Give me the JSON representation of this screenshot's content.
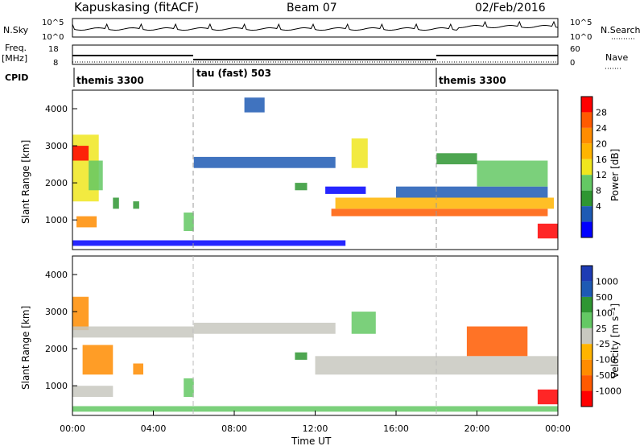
{
  "header": {
    "station": "Kapuskasing (fitACF)",
    "beam": "Beam 07",
    "date": "02/Feb/2016"
  },
  "top_panels": {
    "nsky": {
      "label": "N.Sky",
      "ticks": [
        "10^5",
        "10^0"
      ],
      "right_label": "N.Search",
      "right_ticks": [
        "10^5",
        "10^0"
      ]
    },
    "freq": {
      "label": "Freq.",
      "unit": "[MHz]",
      "ticks": [
        "18",
        "8"
      ],
      "right_label": "Nave",
      "right_ticks": [
        "60",
        "0"
      ]
    },
    "cpid": {
      "label": "CPID",
      "segments": [
        {
          "name": "themis 3300",
          "start": 0,
          "end": 6
        },
        {
          "name": "tau (fast) 503",
          "start": 6,
          "end": 18
        },
        {
          "name": "themis 3300",
          "start": 18,
          "end": 24
        }
      ]
    }
  },
  "axes": {
    "ylabel": "Slant Range [km]",
    "xlabel": "Time UT",
    "yticks": [
      "4000",
      "3000",
      "2000",
      "1000"
    ],
    "xticks": [
      "00:00",
      "04:00",
      "08:00",
      "12:00",
      "16:00",
      "20:00",
      "00:00"
    ]
  },
  "power_scale": {
    "label": "Power [dB]",
    "ticks": [
      "28",
      "24",
      "20",
      "16",
      "12",
      "8",
      "4"
    ],
    "colors": [
      "#ff0000",
      "#ff5a00",
      "#ff8c00",
      "#ffb400",
      "#f0e61e",
      "#64c864",
      "#2f9632",
      "#1e5ab4",
      "#0000ff"
    ]
  },
  "velocity_scale": {
    "label": "Velocity [m s⁻¹]",
    "ticks": [
      "1000",
      "500",
      "100",
      "25",
      "-25",
      "-100",
      "-500",
      "-1000"
    ],
    "colors": [
      "#1e3cb4",
      "#1e5ab4",
      "#2f9632",
      "#64c864",
      "#c8c8c0",
      "#ffb400",
      "#ff8c00",
      "#ff5a00",
      "#ff0000"
    ]
  },
  "chart_data": [
    {
      "type": "heatmap",
      "title": "Power",
      "xlabel": "Time UT",
      "ylabel": "Slant Range [km]",
      "xlim": [
        0,
        24
      ],
      "ylim": [
        200,
        4500
      ],
      "colorbar": "Power [dB]",
      "regions": [
        {
          "t": [
            0.0,
            1.3
          ],
          "r": [
            1500,
            3300
          ],
          "level": 4
        },
        {
          "t": [
            0.0,
            0.8
          ],
          "r": [
            2600,
            3000
          ],
          "level": 0
        },
        {
          "t": [
            0.2,
            1.2
          ],
          "r": [
            800,
            1100
          ],
          "level": 2
        },
        {
          "t": [
            0.8,
            1.5
          ],
          "r": [
            1800,
            2600
          ],
          "level": 5
        },
        {
          "t": [
            2.0,
            2.3
          ],
          "r": [
            1300,
            1600
          ],
          "level": 6
        },
        {
          "t": [
            3.0,
            3.3
          ],
          "r": [
            1300,
            1500
          ],
          "level": 6
        },
        {
          "t": [
            5.5,
            6.0
          ],
          "r": [
            700,
            1200
          ],
          "level": 5
        },
        {
          "t": [
            6.0,
            13.0
          ],
          "r": [
            2400,
            2700
          ],
          "level": 7
        },
        {
          "t": [
            8.5,
            9.5
          ],
          "r": [
            3900,
            4300
          ],
          "level": 7
        },
        {
          "t": [
            11.0,
            11.6
          ],
          "r": [
            1800,
            2000
          ],
          "level": 6
        },
        {
          "t": [
            12.5,
            14.5
          ],
          "r": [
            1700,
            1900
          ],
          "level": 8
        },
        {
          "t": [
            12.8,
            23.5
          ],
          "r": [
            1100,
            1300
          ],
          "level": 1
        },
        {
          "t": [
            13.0,
            23.8
          ],
          "r": [
            1300,
            1600
          ],
          "level": 3
        },
        {
          "t": [
            13.8,
            14.6
          ],
          "r": [
            2400,
            3200
          ],
          "level": 4
        },
        {
          "t": [
            16.0,
            23.5
          ],
          "r": [
            1600,
            1900
          ],
          "level": 7
        },
        {
          "t": [
            20.0,
            23.5
          ],
          "r": [
            1900,
            2600
          ],
          "level": 5
        },
        {
          "t": [
            23.0,
            24.0
          ],
          "r": [
            500,
            900
          ],
          "level": 0
        },
        {
          "t": [
            18.0,
            20.0
          ],
          "r": [
            2500,
            2800
          ],
          "level": 6
        },
        {
          "t": [
            0.0,
            13.5
          ],
          "r": [
            300,
            450
          ],
          "level": 8
        }
      ]
    },
    {
      "type": "heatmap",
      "title": "Velocity",
      "xlabel": "Time UT",
      "ylabel": "Slant Range [km]",
      "xlim": [
        0,
        24
      ],
      "ylim": [
        200,
        4500
      ],
      "colorbar": "Velocity [m s⁻¹]",
      "regions": [
        {
          "t": [
            0.0,
            0.8
          ],
          "r": [
            2500,
            3400
          ],
          "level": 6
        },
        {
          "t": [
            0.5,
            2.0
          ],
          "r": [
            1300,
            2100
          ],
          "level": 6
        },
        {
          "t": [
            0.0,
            6.0
          ],
          "r": [
            2300,
            2600
          ],
          "level": 4
        },
        {
          "t": [
            0.0,
            2.0
          ],
          "r": [
            700,
            1000
          ],
          "level": 4
        },
        {
          "t": [
            3.0,
            3.5
          ],
          "r": [
            1300,
            1600
          ],
          "level": 6
        },
        {
          "t": [
            5.5,
            6.0
          ],
          "r": [
            700,
            1200
          ],
          "level": 3
        },
        {
          "t": [
            6.0,
            13.0
          ],
          "r": [
            2400,
            2700
          ],
          "level": 4
        },
        {
          "t": [
            11.0,
            11.6
          ],
          "r": [
            1700,
            1900
          ],
          "level": 2
        },
        {
          "t": [
            12.0,
            24.0
          ],
          "r": [
            1300,
            1800
          ],
          "level": 4
        },
        {
          "t": [
            13.8,
            15.0
          ],
          "r": [
            2400,
            3000
          ],
          "level": 3
        },
        {
          "t": [
            19.5,
            22.5
          ],
          "r": [
            1800,
            2600
          ],
          "level": 7
        },
        {
          "t": [
            23.0,
            24.0
          ],
          "r": [
            500,
            900
          ],
          "level": 8
        },
        {
          "t": [
            0.0,
            24.0
          ],
          "r": [
            300,
            450
          ],
          "level": 3
        }
      ]
    }
  ]
}
